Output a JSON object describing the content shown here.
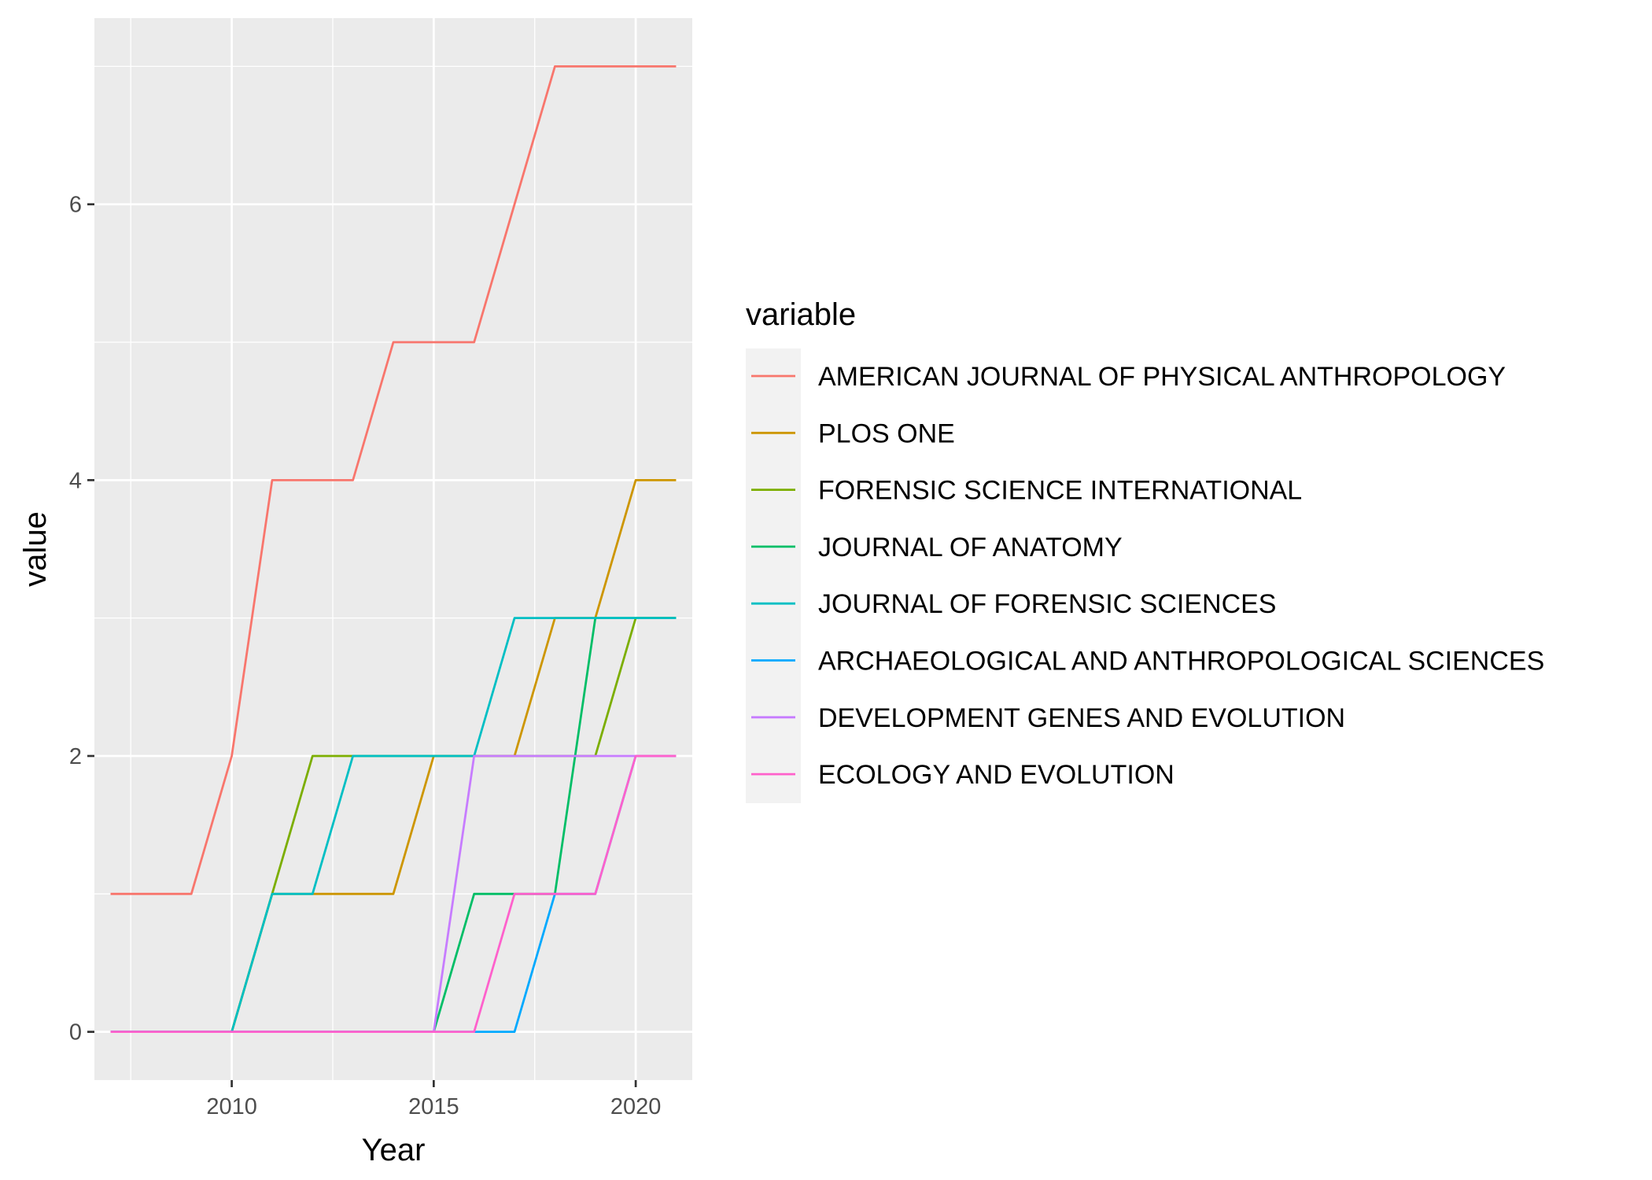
{
  "chart_data": {
    "type": "line",
    "xlabel": "Year",
    "ylabel": "value",
    "xlim": [
      2006.6,
      2021.4
    ],
    "ylim": [
      -0.35,
      7.35
    ],
    "x_ticks": [
      2010,
      2015,
      2020
    ],
    "y_ticks": [
      0,
      2,
      4,
      6
    ],
    "grid": true,
    "legend": {
      "title": "variable",
      "position": "right"
    },
    "x": [
      2007,
      2008,
      2009,
      2010,
      2011,
      2012,
      2013,
      2014,
      2015,
      2016,
      2017,
      2018,
      2019,
      2020,
      2021
    ],
    "series": [
      {
        "name": "AMERICAN JOURNAL OF PHYSICAL ANTHROPOLOGY",
        "color": "#F8766D",
        "values": [
          1,
          1,
          1,
          2,
          4,
          4,
          4,
          5,
          5,
          5,
          6,
          7,
          7,
          7,
          7
        ]
      },
      {
        "name": "PLOS ONE",
        "color": "#CD9600",
        "values": [
          0,
          0,
          0,
          0,
          1,
          1,
          1,
          1,
          2,
          2,
          2,
          3,
          3,
          4,
          4
        ]
      },
      {
        "name": "FORENSIC SCIENCE INTERNATIONAL",
        "color": "#7CAE00",
        "values": [
          0,
          0,
          0,
          0,
          1,
          2,
          2,
          2,
          2,
          2,
          2,
          2,
          2,
          3,
          3
        ]
      },
      {
        "name": "JOURNAL OF ANATOMY",
        "color": "#00BE67",
        "values": [
          0,
          0,
          0,
          0,
          0,
          0,
          0,
          0,
          0,
          1,
          1,
          1,
          3,
          3,
          3
        ]
      },
      {
        "name": "JOURNAL OF FORENSIC SCIENCES",
        "color": "#00BFC4",
        "values": [
          0,
          0,
          0,
          0,
          1,
          1,
          2,
          2,
          2,
          2,
          3,
          3,
          3,
          3,
          3
        ]
      },
      {
        "name": "ARCHAEOLOGICAL AND ANTHROPOLOGICAL SCIENCES",
        "color": "#00A9FF",
        "values": [
          0,
          0,
          0,
          0,
          0,
          0,
          0,
          0,
          0,
          0,
          0,
          1,
          1,
          2,
          2
        ]
      },
      {
        "name": "DEVELOPMENT GENES AND EVOLUTION",
        "color": "#C77CFF",
        "values": [
          0,
          0,
          0,
          0,
          0,
          0,
          0,
          0,
          0,
          2,
          2,
          2,
          2,
          2,
          2
        ]
      },
      {
        "name": "ECOLOGY AND EVOLUTION",
        "color": "#FF61CC",
        "values": [
          0,
          0,
          0,
          0,
          0,
          0,
          0,
          0,
          0,
          0,
          1,
          1,
          1,
          2,
          2
        ]
      }
    ]
  }
}
